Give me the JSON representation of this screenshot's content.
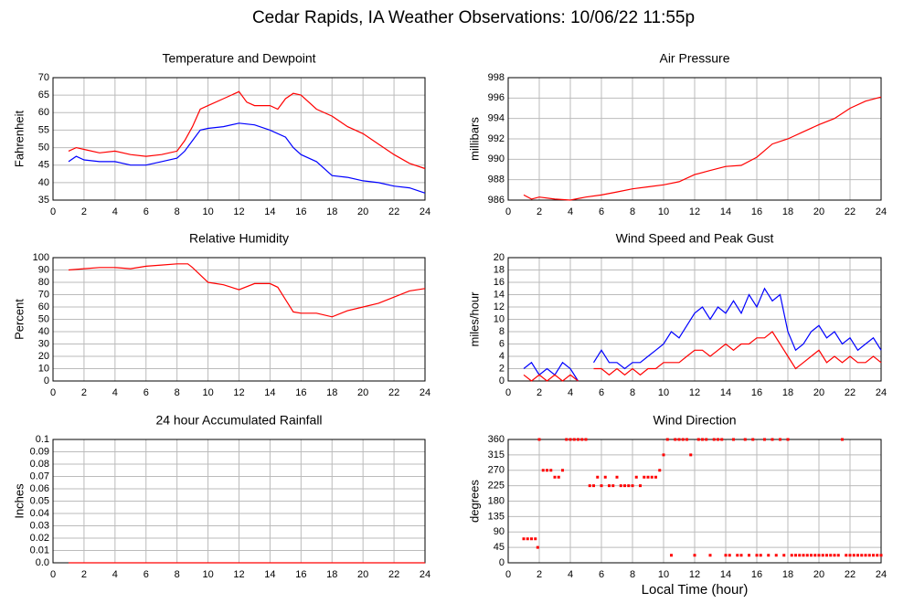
{
  "title": "Cedar Rapids, IA Weather Observations: 10/06/22 11:55p",
  "chart_data": [
    {
      "type": "line",
      "title": "Temperature and Dewpoint",
      "ylabel": "Fahrenheit",
      "xlim": [
        0,
        24
      ],
      "xticks": [
        0,
        2,
        4,
        6,
        8,
        10,
        12,
        14,
        16,
        18,
        20,
        22,
        24
      ],
      "ylim": [
        35,
        70
      ],
      "yticks": [
        35,
        40,
        45,
        50,
        55,
        60,
        65,
        70
      ],
      "grid": true,
      "series": [
        {
          "color": "#ff0000",
          "x": [
            1,
            1.5,
            2,
            3,
            4,
            5,
            6,
            7,
            8,
            8.5,
            9,
            9.5,
            10,
            11,
            12,
            12.5,
            13,
            14,
            14.5,
            15,
            15.5,
            16,
            17,
            18,
            19,
            20,
            21,
            22,
            23,
            24
          ],
          "values": [
            49,
            50,
            49.5,
            48.5,
            49,
            48,
            47.5,
            48,
            49,
            52,
            56,
            61,
            62,
            64,
            66,
            63,
            62,
            62,
            61,
            64,
            65.5,
            65,
            61,
            59,
            56,
            54,
            51,
            48,
            45.5,
            44
          ]
        },
        {
          "color": "#0000ff",
          "x": [
            1,
            1.5,
            2,
            3,
            4,
            5,
            6,
            7,
            8,
            8.5,
            9,
            9.5,
            10,
            11,
            12,
            13,
            14,
            15,
            15.5,
            16,
            17,
            18,
            19,
            20,
            21,
            22,
            23,
            24
          ],
          "values": [
            46,
            47.5,
            46.5,
            46,
            46,
            45,
            45,
            46,
            47,
            49,
            52,
            55,
            55.5,
            56,
            57,
            56.5,
            55,
            53,
            50,
            48,
            46,
            42,
            41.5,
            40.5,
            40,
            39,
            38.5,
            37
          ]
        }
      ]
    },
    {
      "type": "line",
      "title": "Air Pressure",
      "ylabel": "millibars",
      "xlim": [
        0,
        24
      ],
      "xticks": [
        0,
        2,
        4,
        6,
        8,
        10,
        12,
        14,
        16,
        18,
        20,
        22,
        24
      ],
      "ylim": [
        986,
        998
      ],
      "yticks": [
        986,
        988,
        990,
        992,
        994,
        996,
        998
      ],
      "grid": true,
      "series": [
        {
          "color": "#ff0000",
          "x": [
            1,
            1.5,
            2,
            3,
            4,
            5,
            6,
            7,
            8,
            9,
            10,
            11,
            12,
            13,
            14,
            15,
            16,
            17,
            18,
            19,
            20,
            21,
            22,
            23,
            24
          ],
          "values": [
            986.5,
            986.1,
            986.3,
            986.1,
            986.0,
            986.3,
            986.5,
            986.8,
            987.1,
            987.3,
            987.5,
            987.8,
            988.5,
            988.9,
            989.3,
            989.4,
            990.2,
            991.5,
            992.0,
            992.7,
            993.4,
            994.0,
            995.0,
            995.7,
            996.1
          ]
        }
      ]
    },
    {
      "type": "line",
      "title": "Relative Humidity",
      "ylabel": "Percent",
      "xlim": [
        0,
        24
      ],
      "xticks": [
        0,
        2,
        4,
        6,
        8,
        10,
        12,
        14,
        16,
        18,
        20,
        22,
        24
      ],
      "ylim": [
        0,
        100
      ],
      "yticks": [
        0,
        10,
        20,
        30,
        40,
        50,
        60,
        70,
        80,
        90,
        100
      ],
      "grid": true,
      "series": [
        {
          "color": "#ff0000",
          "x": [
            1,
            2,
            3,
            4,
            5,
            6,
            7,
            8,
            8.7,
            9,
            9.5,
            10,
            11,
            12,
            13,
            14,
            14.5,
            15,
            15.5,
            16,
            17,
            18,
            19,
            20,
            21,
            22,
            23,
            24
          ],
          "values": [
            90,
            91,
            92,
            92,
            91,
            93,
            94,
            95,
            95,
            92,
            86,
            80,
            78,
            74,
            79,
            79,
            76,
            66,
            56,
            55,
            55,
            52,
            57,
            60,
            63,
            68,
            73,
            75
          ]
        }
      ]
    },
    {
      "type": "line",
      "title": "Wind Speed and Peak Gust",
      "ylabel": "miles/hour",
      "xlim": [
        0,
        24
      ],
      "xticks": [
        0,
        2,
        4,
        6,
        8,
        10,
        12,
        14,
        16,
        18,
        20,
        22,
        24
      ],
      "ylim": [
        0,
        20
      ],
      "yticks": [
        0,
        2,
        4,
        6,
        8,
        10,
        12,
        14,
        16,
        18,
        20
      ],
      "grid": true,
      "series": [
        {
          "color": "#0000ff",
          "x": [
            1,
            1.5,
            2,
            2.5,
            3,
            3.5,
            4,
            4.5,
            5,
            5.5,
            6,
            6.5,
            7,
            7.5,
            8,
            8.5,
            9,
            9.5,
            10,
            10.5,
            11,
            11.5,
            12,
            12.5,
            13,
            13.5,
            14,
            14.5,
            15,
            15.5,
            16,
            16.5,
            17,
            17.5,
            18,
            18.5,
            19,
            19.5,
            20,
            20.5,
            21,
            21.5,
            22,
            22.5,
            23,
            23.5,
            24
          ],
          "values": [
            2,
            3,
            1,
            2,
            1,
            3,
            2,
            0,
            null,
            3,
            5,
            3,
            3,
            2,
            3,
            3,
            4,
            5,
            6,
            8,
            7,
            9,
            11,
            12,
            10,
            12,
            11,
            13,
            11,
            14,
            12,
            15,
            13,
            14,
            8,
            5,
            6,
            8,
            9,
            7,
            8,
            6,
            7,
            5,
            6,
            7,
            5
          ]
        },
        {
          "color": "#ff0000",
          "x": [
            1,
            1.5,
            2,
            2.5,
            3,
            3.5,
            4,
            4.5,
            5,
            5.5,
            6,
            6.5,
            7,
            7.5,
            8,
            8.5,
            9,
            9.5,
            10,
            10.5,
            11,
            11.5,
            12,
            12.5,
            13,
            13.5,
            14,
            14.5,
            15,
            15.5,
            16,
            16.5,
            17,
            17.5,
            18,
            18.5,
            19,
            19.5,
            20,
            20.5,
            21,
            21.5,
            22,
            22.5,
            23,
            23.5,
            24
          ],
          "values": [
            1,
            0,
            1,
            0,
            1,
            0,
            1,
            0,
            null,
            2,
            2,
            1,
            2,
            1,
            2,
            1,
            2,
            2,
            3,
            3,
            3,
            4,
            5,
            5,
            4,
            5,
            6,
            5,
            6,
            6,
            7,
            7,
            8,
            6,
            4,
            2,
            3,
            4,
            5,
            3,
            4,
            3,
            4,
            3,
            3,
            4,
            3
          ]
        }
      ]
    },
    {
      "type": "line",
      "title": "24 hour Accumulated Rainfall",
      "ylabel": "Inches",
      "xlim": [
        0,
        24
      ],
      "xticks": [
        0,
        2,
        4,
        6,
        8,
        10,
        12,
        14,
        16,
        18,
        20,
        22,
        24
      ],
      "ylim": [
        0,
        0.1
      ],
      "yticks": [
        {
          "value": 0,
          "label": "0.0"
        },
        0.01,
        0.02,
        0.03,
        0.04,
        0.05,
        0.06,
        0.07,
        0.08,
        0.09,
        0.1
      ],
      "grid": true,
      "series": [
        {
          "color": "#ff0000",
          "x": [
            1,
            24
          ],
          "values": [
            0,
            0
          ]
        }
      ]
    },
    {
      "type": "scatter",
      "title": "Wind Direction",
      "ylabel": "degrees",
      "xlabel": "Local Time (hour)",
      "xlim": [
        0,
        24
      ],
      "xticks": [
        0,
        2,
        4,
        6,
        8,
        10,
        12,
        14,
        16,
        18,
        20,
        22,
        24
      ],
      "ylim": [
        0,
        360
      ],
      "yticks": [
        0,
        45,
        90,
        135,
        180,
        225,
        270,
        315,
        360
      ],
      "grid": true,
      "color": "#ff0000",
      "x": [
        1,
        1.25,
        1.5,
        1.75,
        1.9,
        2,
        2.25,
        2.5,
        2.75,
        3,
        3.25,
        3.5,
        3.75,
        4,
        4.25,
        4.5,
        4.75,
        5,
        5.25,
        5.5,
        5.75,
        6,
        6.25,
        6.5,
        6.75,
        7,
        7.25,
        7.5,
        7.75,
        8,
        8.25,
        8.5,
        8.75,
        9,
        9.25,
        9.5,
        9.75,
        10,
        10.25,
        10.5,
        10.75,
        11,
        11.25,
        11.5,
        11.75,
        12,
        12.25,
        12.5,
        12.75,
        13,
        13.25,
        13.5,
        13.75,
        14,
        14.25,
        14.5,
        14.75,
        15,
        15.25,
        15.5,
        15.75,
        16,
        16.25,
        16.5,
        16.75,
        17,
        17.25,
        17.5,
        17.75,
        18,
        18.25,
        18.5,
        18.75,
        19,
        19.25,
        19.5,
        19.75,
        20,
        20.25,
        20.5,
        20.75,
        21,
        21.25,
        21.5,
        21.75,
        22,
        22.25,
        22.5,
        22.75,
        23,
        23.25,
        23.5,
        23.75,
        24
      ],
      "values": [
        70,
        70,
        70,
        70,
        45,
        360,
        270,
        270,
        270,
        250,
        250,
        270,
        360,
        360,
        360,
        360,
        360,
        360,
        225,
        225,
        250,
        225,
        250,
        225,
        225,
        250,
        225,
        225,
        225,
        225,
        250,
        225,
        250,
        250,
        250,
        250,
        270,
        315,
        360,
        22,
        360,
        360,
        360,
        360,
        315,
        22,
        360,
        360,
        360,
        22,
        360,
        360,
        360,
        22,
        22,
        360,
        22,
        22,
        360,
        22,
        360,
        22,
        22,
        360,
        22,
        360,
        22,
        360,
        22,
        360,
        22,
        22,
        22,
        22,
        22,
        22,
        22,
        22,
        22,
        22,
        22,
        22,
        22,
        360,
        22,
        22,
        22,
        22,
        22,
        22,
        22,
        22,
        22,
        22
      ]
    }
  ]
}
